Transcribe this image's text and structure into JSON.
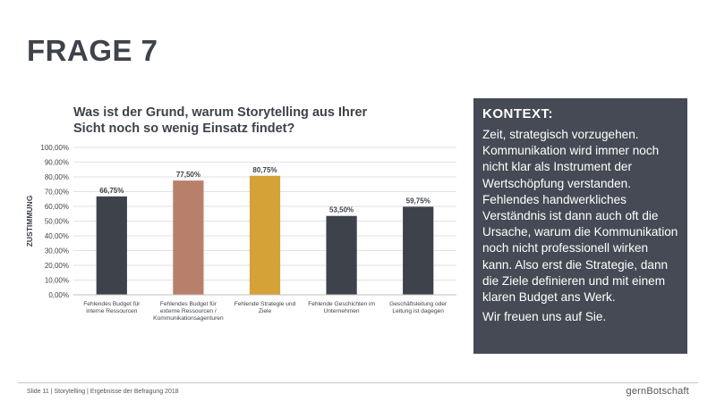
{
  "slide": {
    "title": "FRAGE 7",
    "footer": "Slide 11 | Storytelling | Ergebnisse der Befragung 2018",
    "brand": "gernBotschaft"
  },
  "context": {
    "heading": "KONTEXT:",
    "body": "Zeit, strategisch vorzugehen. Kommunikation wird immer noch nicht klar als Instrument der Wertschöpfung verstanden. Fehlendes handwerkliches Verständnis ist dann auch oft die Ursache, warum die Kommunikation noch nicht professionell wirken kann. Also erst die Strategie, dann die Ziele definieren und mit einem klaren Budget ans Werk.",
    "closing": "Wir freuen uns auf Sie."
  },
  "chart_data": {
    "type": "bar",
    "title": "Was ist der Grund, warum Storytelling aus Ihrer Sicht noch so wenig Einsatz findet?",
    "ylabel": "ZUSTIMMUNG",
    "xlabel": "",
    "ylim": [
      0,
      100
    ],
    "yticks": [
      "0,00%",
      "10,00%",
      "20,00%",
      "30,00%",
      "40,00%",
      "50,00%",
      "60,00%",
      "70,00%",
      "80,00%",
      "90,00%",
      "100,00%"
    ],
    "grid": true,
    "categories": [
      [
        "Fehlendes Budget für",
        "interne Ressourcen"
      ],
      [
        "Fehlendes Budget für",
        "externe Ressourcen /",
        "Kommunikationsagenturen"
      ],
      [
        "Fehlende Strategie und",
        "Ziele"
      ],
      [
        "Fehlende Geschichten im",
        "Unternehmen"
      ],
      [
        "Geschäftsleitung oder",
        "Leitung ist dagegen"
      ]
    ],
    "values": [
      66.75,
      77.5,
      80.75,
      53.5,
      59.75
    ],
    "value_labels": [
      "66,75%",
      "77,50%",
      "80,75%",
      "53,50%",
      "59,75%"
    ],
    "colors": [
      "#3d424b",
      "#b8806b",
      "#d4a237",
      "#3d424b",
      "#3d424b"
    ]
  }
}
